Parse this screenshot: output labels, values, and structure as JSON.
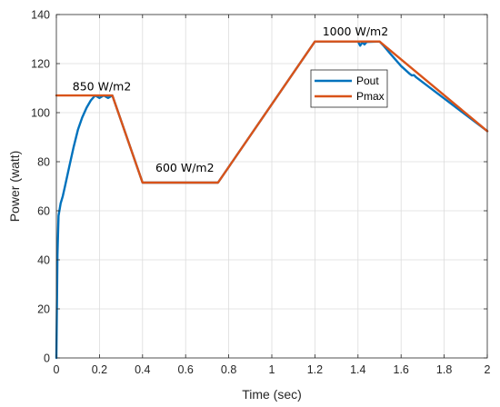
{
  "chart_data": {
    "type": "line",
    "title": "",
    "xlabel": "Time (sec)",
    "ylabel": "Power (watt)",
    "xlim": [
      0,
      2
    ],
    "ylim": [
      0,
      140
    ],
    "x_ticks": [
      0,
      0.2,
      0.4,
      0.6,
      0.8,
      1,
      1.2,
      1.4,
      1.6,
      1.8,
      2
    ],
    "x_tick_labels": [
      "0",
      "0.2",
      "0.4",
      "0.6",
      "0.8",
      "1",
      "1.2",
      "1.4",
      "1.6",
      "1.8",
      "2"
    ],
    "y_ticks": [
      0,
      20,
      40,
      60,
      80,
      100,
      120,
      140
    ],
    "y_tick_labels": [
      "0",
      "20",
      "40",
      "60",
      "80",
      "100",
      "120",
      "140"
    ],
    "grid": true,
    "legend_position": "upper-right-inside",
    "annotations": [
      {
        "text": "850 W/m2",
        "x": 0.075,
        "y": 109
      },
      {
        "text": "600 W/m2",
        "x": 0.46,
        "y": 76
      },
      {
        "text": "1000 W/m2",
        "x": 1.235,
        "y": 131.5
      }
    ],
    "series": [
      {
        "name": "Pout",
        "color": "#0072BD",
        "x": [
          0,
          0.005,
          0.01,
          0.02,
          0.03,
          0.04,
          0.06,
          0.08,
          0.1,
          0.12,
          0.14,
          0.16,
          0.18,
          0.2,
          0.22,
          0.24,
          0.26,
          0.4,
          0.75,
          1.2,
          1.4,
          1.41,
          1.42,
          1.43,
          1.44,
          1.5,
          1.52,
          1.55,
          1.6,
          1.64,
          1.65,
          1.66,
          1.67,
          2.0
        ],
        "y": [
          0,
          42,
          58,
          63,
          66,
          70,
          78,
          86,
          93,
          98,
          102,
          105,
          107,
          106,
          107,
          106,
          107,
          71.5,
          71.5,
          129,
          129,
          127.3,
          128.7,
          127.8,
          128.8,
          129,
          127.2,
          124,
          119,
          115.8,
          115.2,
          115.3,
          114.4,
          92.5
        ]
      },
      {
        "name": "Pmax",
        "color": "#D95319",
        "x": [
          0,
          0.26,
          0.4,
          0.75,
          1.2,
          1.5,
          2.0
        ],
        "y": [
          107,
          107,
          71.5,
          71.5,
          129,
          129,
          92.5
        ]
      }
    ]
  }
}
